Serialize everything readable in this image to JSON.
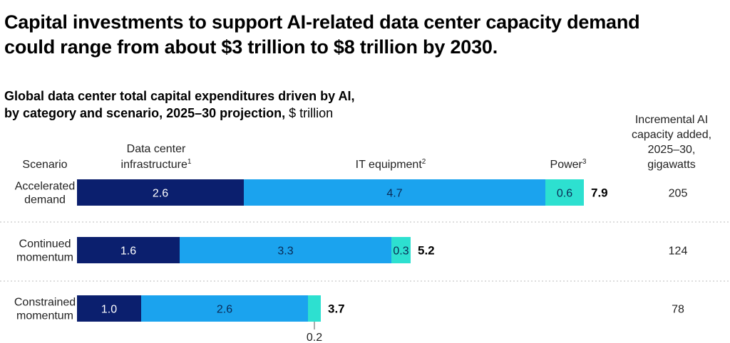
{
  "title_line1": "Capital investments to support AI-related data center capacity demand",
  "title_line2": "could range from about $3 trillion to $8 trillion by 2030.",
  "subtitle_line1": "Global data center total capital expenditures driven by AI,",
  "subtitle_line2_bold": "by category and scenario, 2025–30 projection,",
  "subtitle_unit": " $ trillion",
  "capacity_header": [
    "Incremental AI",
    "capacity added,",
    "2025–30,",
    "gigawatts"
  ],
  "column_headers": {
    "scenario": "Scenario",
    "infrastructure": [
      "Data center",
      "infrastructure"
    ],
    "infrastructure_sup": "1",
    "it_equipment": "IT equipment",
    "it_equipment_sup": "2",
    "power": "Power",
    "power_sup": "3"
  },
  "colors": {
    "infrastructure": "#0b1f6e",
    "it_equipment": "#1ba3ee",
    "power": "#2de0d0",
    "divider": "#bbbbbb"
  },
  "chart_data": {
    "type": "bar",
    "orientation": "horizontal",
    "stacked": true,
    "categories": [
      [
        "Accelerated",
        "demand"
      ],
      [
        "Continued",
        "momentum"
      ],
      [
        "Constrained",
        "momentum"
      ]
    ],
    "series": [
      {
        "name": "Data center infrastructure",
        "values": [
          2.6,
          1.6,
          1.0
        ]
      },
      {
        "name": "IT equipment",
        "values": [
          4.7,
          3.3,
          2.6
        ]
      },
      {
        "name": "Power",
        "values": [
          0.6,
          0.3,
          0.2
        ]
      }
    ],
    "totals": [
      "7.9",
      "5.2",
      "3.7"
    ],
    "value_labels": [
      [
        "2.6",
        "4.7",
        "0.6"
      ],
      [
        "1.6",
        "3.3",
        "0.3"
      ],
      [
        "1.0",
        "2.6",
        "0.2"
      ]
    ],
    "capacity_gw": [
      "205",
      "124",
      "78"
    ],
    "xlim": [
      0,
      7.9
    ]
  }
}
